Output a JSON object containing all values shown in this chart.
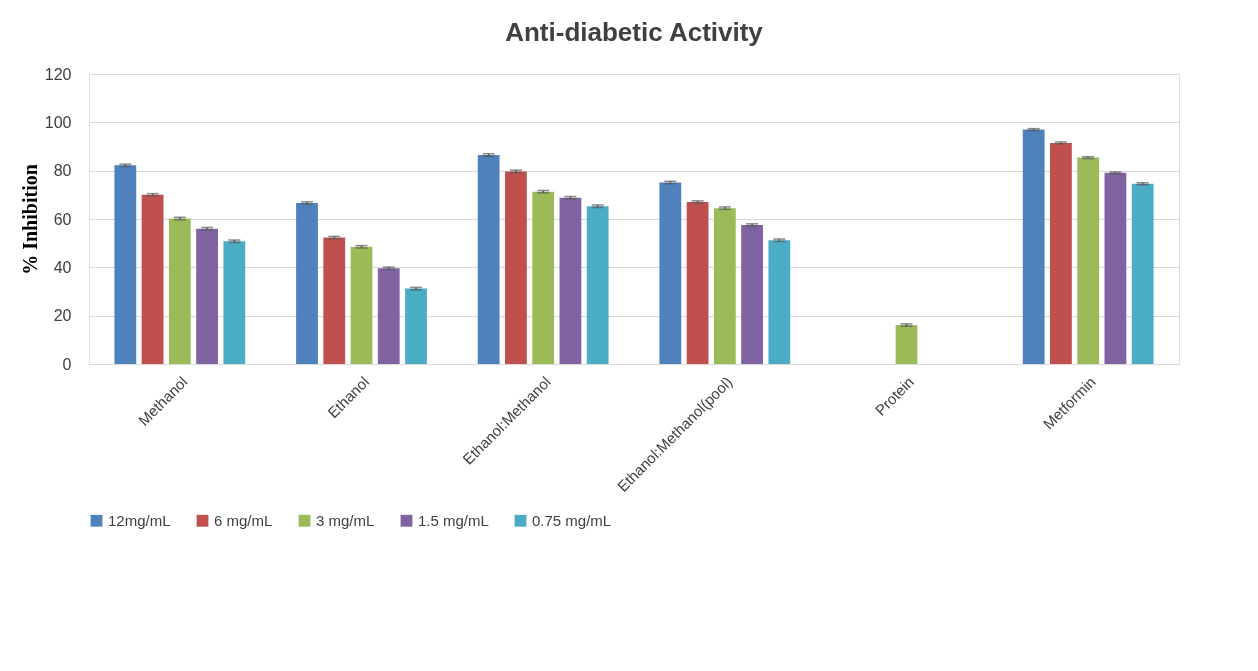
{
  "chart_data": {
    "type": "bar",
    "title": "Anti-diabetic Activity",
    "ylabel": "% Inhibition",
    "categories": [
      "Methanol",
      "Ethanol",
      "Ethanol:Methanol",
      "Ethanol:Methanol(pool)",
      "Protein",
      "Metformin"
    ],
    "series": [
      {
        "name": "12mg/mL",
        "color": "#4f81bd",
        "values": [
          82.2,
          66.6,
          86.5,
          75.1,
          null,
          97.0
        ],
        "errors": [
          0.5,
          0.5,
          0.5,
          0.5,
          null,
          0.4
        ]
      },
      {
        "name": "6 mg/mL",
        "color": "#c0504d",
        "values": [
          70.0,
          52.3,
          79.7,
          67.0,
          null,
          91.5
        ],
        "errors": [
          0.5,
          0.5,
          0.5,
          0.5,
          null,
          0.4
        ]
      },
      {
        "name": "3 mg/mL",
        "color": "#9bbb59",
        "values": [
          60.2,
          48.5,
          71.3,
          64.5,
          16.1,
          85.4
        ],
        "errors": [
          0.5,
          0.5,
          0.5,
          0.5,
          0.5,
          0.4
        ]
      },
      {
        "name": "1.5 mg/mL",
        "color": "#8064a2",
        "values": [
          56.0,
          39.6,
          68.8,
          57.5,
          null,
          79.1
        ],
        "errors": [
          0.5,
          0.5,
          0.5,
          0.5,
          null,
          0.4
        ]
      },
      {
        "name": "0.75 mg/mL",
        "color": "#4bacc6",
        "values": [
          50.8,
          31.2,
          65.3,
          51.2,
          null,
          74.6
        ],
        "errors": [
          0.5,
          0.5,
          0.5,
          0.5,
          null,
          0.4
        ]
      }
    ],
    "ylim": [
      0,
      120
    ],
    "yticks": [
      0,
      20,
      40,
      60,
      80,
      100,
      120
    ],
    "grid": "y",
    "legend": "bottom"
  }
}
